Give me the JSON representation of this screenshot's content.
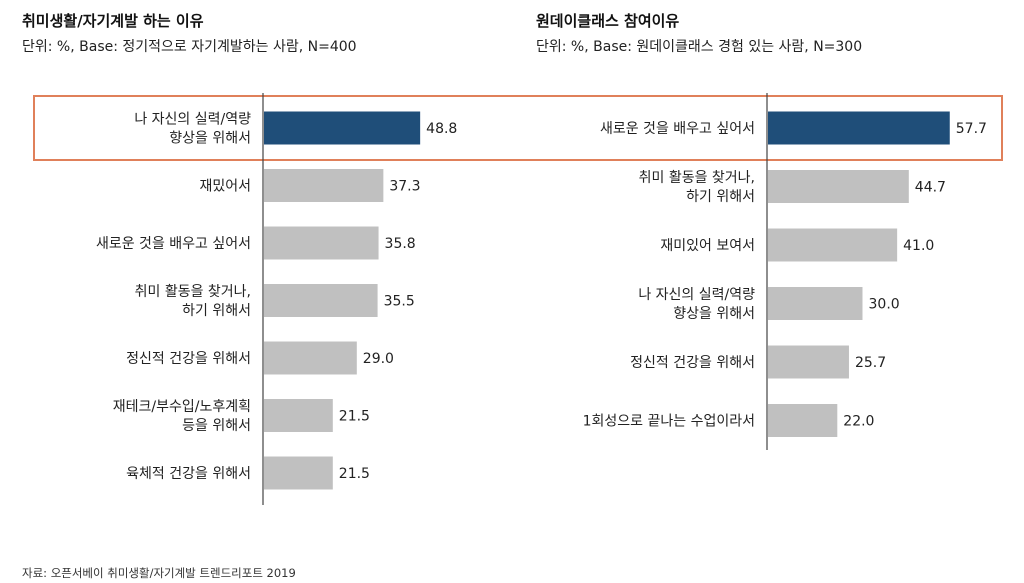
{
  "chart_data": [
    {
      "type": "bar",
      "orientation": "horizontal",
      "title": "취미생활/자기계발 하는 이유",
      "subtitle": "단위: %, Base: 정기적으로 자기계발하는 사람, N=400",
      "categories": [
        [
          "나 자신의 실력/역량",
          "향상을 위해서"
        ],
        [
          "재밌어서"
        ],
        [
          "새로운 것을 배우고 싶어서"
        ],
        [
          "취미 활동을 찾거나,",
          "하기 위해서"
        ],
        [
          "정신적 건강을 위해서"
        ],
        [
          "재테크/부수입/노후계획",
          "등을 위해서"
        ],
        [
          "육체적 건강을 위해서"
        ]
      ],
      "values": [
        48.8,
        37.3,
        35.8,
        35.5,
        29.0,
        21.5,
        21.5
      ],
      "labels": [
        "48.8",
        "37.3",
        "35.8",
        "35.5",
        "29.0",
        "21.5",
        "21.5"
      ],
      "highlight_index": 0,
      "xlim": [
        0,
        100
      ]
    },
    {
      "type": "bar",
      "orientation": "horizontal",
      "title": "원데이클래스 참여이유",
      "subtitle": "단위: %, Base: 원데이클래스 경험 있는 사람, N=300",
      "categories": [
        [
          "새로운 것을 배우고 싶어서"
        ],
        [
          "취미 활동을 찾거나,",
          "하기 위해서"
        ],
        [
          "재미있어 보여서"
        ],
        [
          "나 자신의 실력/역량",
          "향상을 위해서"
        ],
        [
          "정신적 건강을 위해서"
        ],
        [
          "1회성으로 끝나는 수업이라서"
        ]
      ],
      "values": [
        57.7,
        44.7,
        41.0,
        30.0,
        25.7,
        22.0
      ],
      "labels": [
        "57.7",
        "44.7",
        "41.0",
        "30.0",
        "25.7",
        "22.0"
      ],
      "highlight_index": 0,
      "xlim": [
        0,
        100
      ]
    }
  ],
  "colors": {
    "highlight_bar": "#1f4e79",
    "default_bar": "#c0c0c0",
    "highlight_box": "#e0805a",
    "axis": "#444444"
  },
  "source": "자료: 오픈서베이 취미생활/자기계발 트렌드리포트 2019"
}
